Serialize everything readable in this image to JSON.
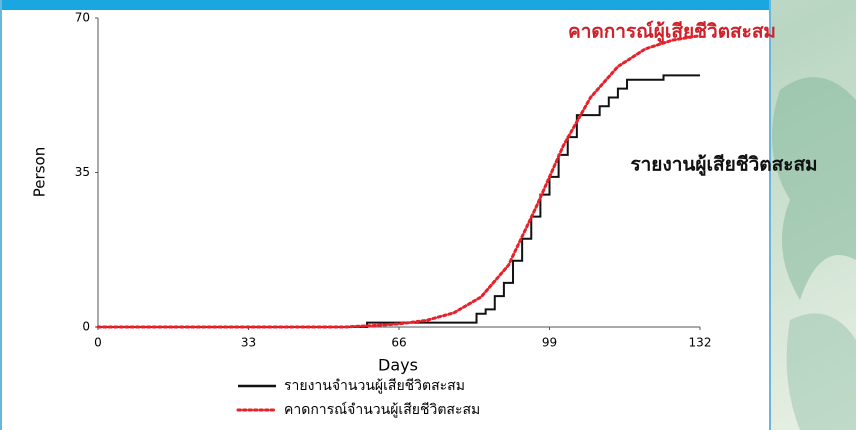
{
  "chart_data": {
    "type": "line",
    "xlabel": "Days",
    "ylabel": "Person",
    "xlim": [
      0,
      132
    ],
    "xticks": [
      0,
      33,
      66,
      99,
      132
    ],
    "ylim": [
      0,
      70
    ],
    "yticks": [
      0,
      35,
      70
    ],
    "series": [
      {
        "name": "รายงานจำนวนผู้เสียชีวิตสะสม",
        "color": "#111111",
        "style": "solid",
        "step": true,
        "x": [
          0,
          59,
          82,
          83,
          85,
          87,
          89,
          91,
          93,
          95,
          97,
          99,
          101,
          103,
          105,
          108,
          110,
          112,
          114,
          116,
          120,
          124,
          128,
          132
        ],
        "values": [
          0,
          1,
          1,
          3,
          4,
          7,
          10,
          15,
          20,
          25,
          30,
          34,
          39,
          43,
          48,
          48,
          50,
          52,
          54,
          56,
          56,
          57,
          57,
          57
        ]
      },
      {
        "name": "คาดการณ์จำนวนผู้เสียชีวิตสะสม",
        "color": "#e8202a",
        "style": "dotted",
        "step": false,
        "x": [
          0,
          54,
          60,
          66,
          72,
          78,
          84,
          90,
          96,
          99,
          102,
          108,
          114,
          120,
          126,
          132
        ],
        "values": [
          0,
          0,
          0.3,
          0.7,
          1.5,
          3.2,
          6.8,
          14,
          27,
          34,
          41,
          52,
          59,
          63,
          65,
          66
        ]
      }
    ],
    "annotations": [
      {
        "text": "คาดการณ์ผู้เสียชีวิตสะสม",
        "color": "#d0202a"
      },
      {
        "text": "รายงานผู้เสียชีวิตสะสม",
        "color": "#111111"
      }
    ]
  }
}
